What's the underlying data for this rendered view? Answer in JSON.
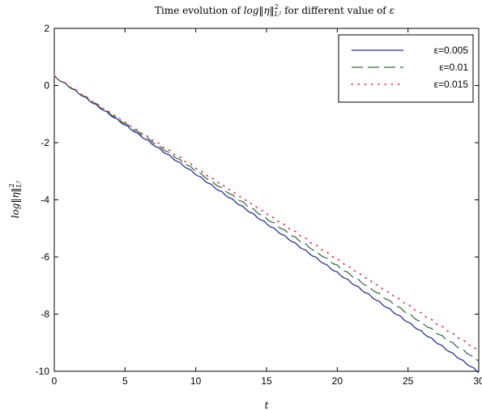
{
  "chart_data": {
    "type": "line",
    "title": "Time evolution of log‖η‖²_{L²} for different value of ε",
    "title_parts": {
      "prefix": "Time evolution of ",
      "log": "log",
      "norm_open": "‖",
      "eta": "η",
      "norm_close": "‖",
      "sup": "2",
      "sub": "L²",
      "suffix": " for different value of ",
      "eps": "ε"
    },
    "xlabel": "t",
    "ylabel": "log‖η‖²_{L²}",
    "ylabel_parts": {
      "log": "log",
      "norm_open": "‖",
      "eta": "η",
      "norm_close": "‖",
      "sup": "2",
      "sub": "L²"
    },
    "xlim": [
      0,
      30
    ],
    "ylim": [
      -10,
      2
    ],
    "xticks": [
      0,
      5,
      10,
      15,
      20,
      25,
      30
    ],
    "yticks": [
      -10,
      -8,
      -6,
      -4,
      -2,
      0,
      2
    ],
    "grid": false,
    "legend_position": "top-right",
    "series": [
      {
        "name": "ε=0.005",
        "style": "solid",
        "color": "#2b2f8f",
        "x": [
          0,
          5,
          10,
          15,
          20,
          25,
          30
        ],
        "y": [
          0.35,
          -1.35,
          -3.07,
          -4.8,
          -6.52,
          -8.25,
          -10.0
        ]
      },
      {
        "name": "ε=0.01",
        "style": "dashed",
        "color": "#3d6b46",
        "x": [
          0,
          5,
          10,
          15,
          20,
          25,
          30
        ],
        "y": [
          0.35,
          -1.3,
          -2.95,
          -4.62,
          -6.28,
          -7.95,
          -9.6
        ]
      },
      {
        "name": "ε=0.015",
        "style": "dotted",
        "color": "#e0303a",
        "x": [
          0,
          5,
          10,
          15,
          20,
          25,
          30
        ],
        "y": [
          0.35,
          -1.25,
          -2.85,
          -4.45,
          -6.05,
          -7.65,
          -9.25
        ]
      }
    ]
  }
}
